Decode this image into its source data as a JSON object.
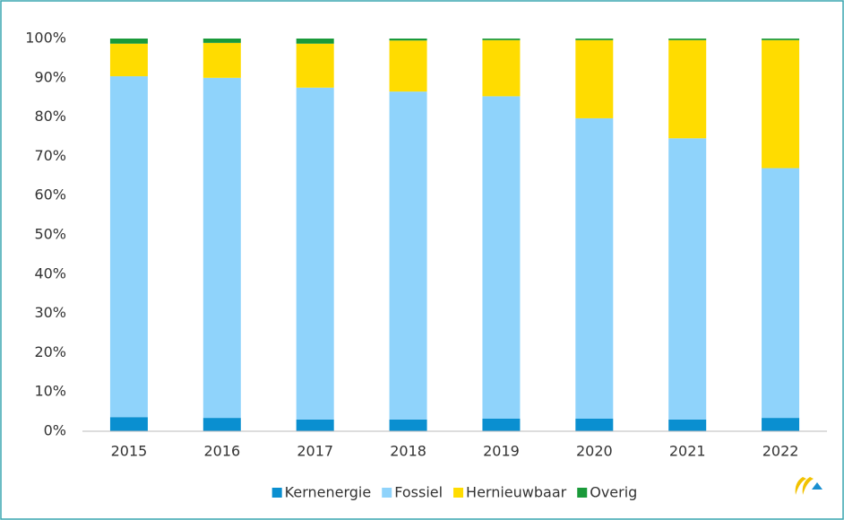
{
  "chart_data": {
    "type": "stacked_bar",
    "categories": [
      "2015",
      "2016",
      "2017",
      "2018",
      "2019",
      "2020",
      "2021",
      "2022"
    ],
    "series": [
      {
        "name": "Kernenergie",
        "color": "#0a8fd0",
        "values": [
          3.6,
          3.4,
          3.0,
          3.0,
          3.2,
          3.2,
          3.0,
          3.4
        ]
      },
      {
        "name": "Fossiel",
        "color": "#8fd3fb",
        "values": [
          86.8,
          86.6,
          84.5,
          83.5,
          82.1,
          76.5,
          71.6,
          63.6
        ]
      },
      {
        "name": "Hernieuwbaar",
        "color": "#ffdc00",
        "values": [
          8.3,
          8.9,
          11.2,
          13.0,
          14.3,
          19.9,
          25.0,
          32.6
        ]
      },
      {
        "name": "Overig",
        "color": "#1a9a3a",
        "values": [
          1.3,
          1.1,
          1.3,
          0.5,
          0.4,
          0.4,
          0.4,
          0.4
        ]
      }
    ],
    "ylim": [
      0,
      100
    ],
    "yticks": [
      {
        "value": 0,
        "label": "0%"
      },
      {
        "value": 10,
        "label": "10%"
      },
      {
        "value": 20,
        "label": "20%"
      },
      {
        "value": 30,
        "label": "30%"
      },
      {
        "value": 40,
        "label": "40%"
      },
      {
        "value": 50,
        "label": "50%"
      },
      {
        "value": 60,
        "label": "60%"
      },
      {
        "value": 70,
        "label": "70%"
      },
      {
        "value": 80,
        "label": "80%"
      },
      {
        "value": 90,
        "label": "90%"
      },
      {
        "value": 100,
        "label": "100%"
      }
    ],
    "grid": false,
    "legend": "bottom"
  }
}
